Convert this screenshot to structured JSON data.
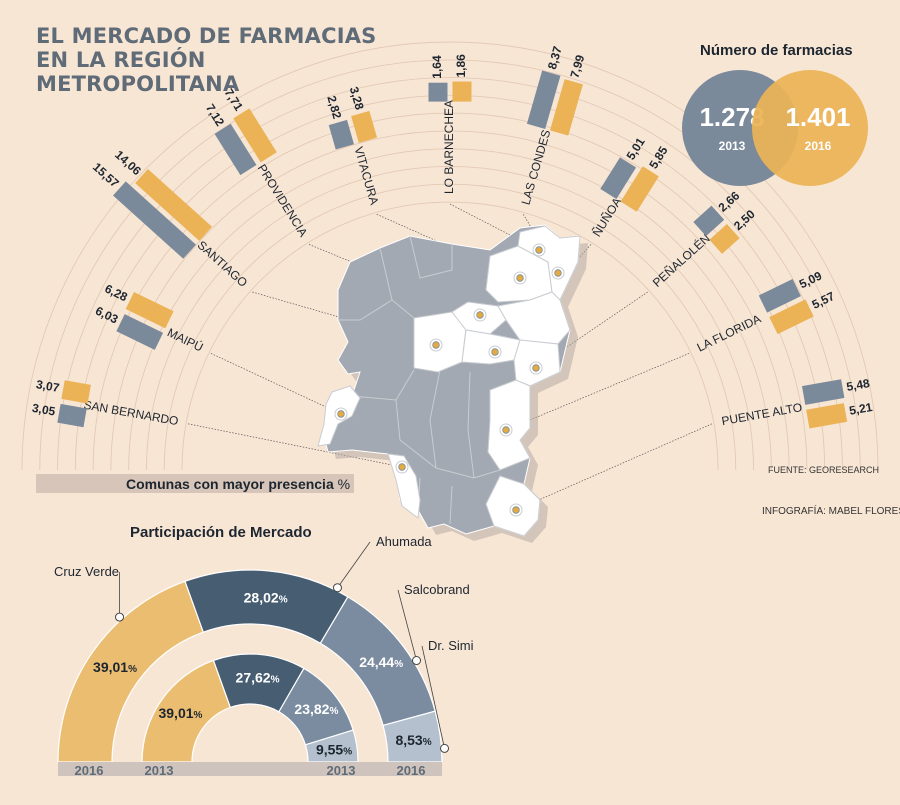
{
  "title_lines": [
    "EL MERCADO DE FARMACIAS",
    "EN LA REGIÓN",
    "METROPOLITANA"
  ],
  "numero_farmacias": {
    "title": "Número de farmacias",
    "items": [
      {
        "value": "1.278",
        "year": "2013",
        "color": "#7b8a9b"
      },
      {
        "value": "1.401",
        "year": "2016",
        "color": "#ebb356"
      }
    ]
  },
  "comunas_bar": {
    "label": "Comunas con mayor presencia",
    "unit": "%"
  },
  "fuente": "FUENTE: GEORESEARCH",
  "infografia": "INFOGRAFÍA: MABEL FLORES V.",
  "participacion_title": "Participación de Mercado",
  "colors": {
    "s2013": "#7b8a9b",
    "s2016": "#ebb356",
    "background": "#f8e6d5",
    "map_gray": "#a3a9b2",
    "map_white": "#ffffff",
    "cruz_verde": "#ebbd71",
    "ahumada": "#465d72",
    "salcobrand": "#7b8ca0",
    "dr_simi": "#b4c0cd"
  },
  "chart_data": [
    {
      "type": "bar",
      "layout": "radial",
      "unit": "%",
      "categories": [
        "SAN BERNARDO",
        "MAIPÚ",
        "SANTIAGO",
        "PROVIDENCIA",
        "VITACURA",
        "LO BARNECHEA",
        "LAS CONDES",
        "ÑUÑOA",
        "PEÑALOLÉN",
        "LA FLORIDA",
        "PUENTE ALTO"
      ],
      "series": [
        {
          "year": "2013",
          "values": [
            3.05,
            6.03,
            15.57,
            7.12,
            2.82,
            1.64,
            8.37,
            5.01,
            2.66,
            5.09,
            5.48
          ],
          "labels": [
            "3,05",
            "6,03",
            "15,57",
            "7,12",
            "2,82",
            "1,64",
            "8,37",
            "5,01",
            "2,66",
            "5,09",
            "5,48"
          ]
        },
        {
          "year": "2016",
          "values": [
            3.07,
            6.28,
            14.06,
            7.71,
            3.28,
            1.86,
            7.99,
            5.85,
            2.5,
            5.57,
            5.21
          ],
          "labels": [
            "3,07",
            "6,28",
            "14,06",
            "7,71",
            "3,28",
            "1,86",
            "7,99",
            "5,85",
            "2,50",
            "5,57",
            "5,21"
          ]
        }
      ]
    },
    {
      "type": "pie",
      "layout": "semicircle",
      "year": "2016",
      "slices": [
        {
          "name": "Cruz Verde",
          "value": 39.01,
          "label": "39,01",
          "unit": "%"
        },
        {
          "name": "Ahumada",
          "value": 28.02,
          "label": "28,02",
          "unit": "%"
        },
        {
          "name": "Salcobrand",
          "value": 24.44,
          "label": "24,44",
          "unit": "%"
        },
        {
          "name": "Dr. Simi",
          "value": 8.53,
          "label": "8,53",
          "unit": "%"
        }
      ]
    },
    {
      "type": "pie",
      "layout": "semicircle",
      "year": "2013",
      "slices": [
        {
          "name": "Cruz Verde",
          "value": 39.01,
          "label": "39,01",
          "unit": "%"
        },
        {
          "name": "Ahumada",
          "value": 27.62,
          "label": "27,62",
          "unit": "%"
        },
        {
          "name": "Salcobrand",
          "value": 23.82,
          "label": "23,82",
          "unit": "%"
        },
        {
          "name": "Dr. Simi",
          "value": 9.55,
          "label": "9,55",
          "unit": "%"
        }
      ]
    }
  ]
}
